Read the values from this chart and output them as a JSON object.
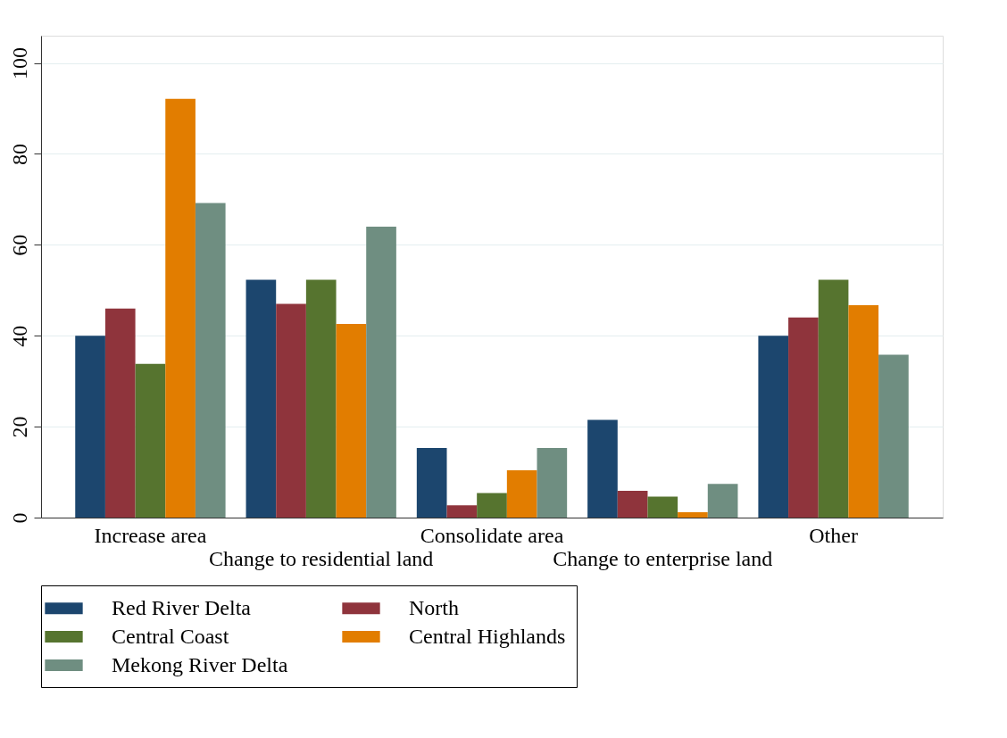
{
  "chart_data": {
    "type": "bar",
    "categories": [
      "Increase area",
      "Change to residential land",
      "Consolidate area",
      "Change to enterprise land",
      "Other"
    ],
    "series": [
      {
        "name": "Red River Delta",
        "color": "#1c466e",
        "values": [
          40,
          52.3,
          15.3,
          21.5,
          40
        ]
      },
      {
        "name": "North",
        "color": "#8f343c",
        "values": [
          46,
          47,
          2.7,
          5.9,
          44
        ]
      },
      {
        "name": "Central Coast",
        "color": "#56742f",
        "values": [
          33.8,
          52.3,
          5.4,
          4.6,
          52.3
        ]
      },
      {
        "name": "Central Highlands",
        "color": "#e27d00",
        "values": [
          92.1,
          42.6,
          10.4,
          1.2,
          46.7
        ]
      },
      {
        "name": "Mekong River Delta",
        "color": "#6f8e81",
        "values": [
          69.2,
          64,
          15.3,
          7.4,
          35.8
        ]
      }
    ],
    "ylim": [
      0,
      106
    ],
    "yticks": [
      0,
      20,
      40,
      60,
      80,
      100
    ],
    "grid": "y",
    "legend": "bottom"
  }
}
